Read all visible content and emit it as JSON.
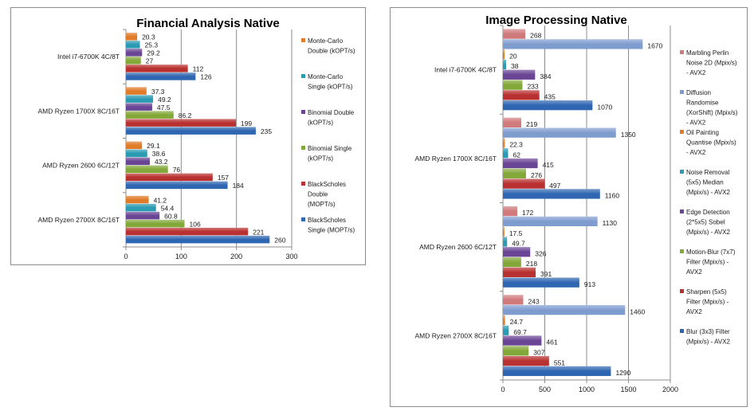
{
  "chart_data": [
    {
      "type": "bar",
      "orientation": "horizontal",
      "title": "Financial Analysis Native",
      "xlabel": "",
      "ylabel": "",
      "xlim": [
        0,
        300
      ],
      "xticks": [
        "0",
        "100",
        "200",
        "300"
      ],
      "grid": true,
      "legend_position": "right",
      "categories": [
        "Intel i7-6700K 4C/8T",
        "AMD Ryzen 1700X 8C/16T",
        "AMD Ryzen 2600 6C/12T",
        "AMD Ryzen 2700X 8C/16T"
      ],
      "series": [
        {
          "name": "Monte-Carlo Double (kOPT/s)",
          "legend_lines": [
            "Monte-Carlo",
            "Double (kOPT/s)"
          ],
          "color": "#e07b29",
          "values": [
            20.3,
            37.3,
            29.1,
            41.2
          ],
          "labels": [
            "20.3",
            "37.3",
            "29.1",
            "41.2"
          ]
        },
        {
          "name": "Monte-Carlo Single (kOPT/s)",
          "legend_lines": [
            "Monte-Carlo",
            "Single (kOPT/s)"
          ],
          "color": "#2b9bb3",
          "values": [
            25.3,
            49.2,
            38.6,
            54.4
          ],
          "labels": [
            "25.3",
            "49.2",
            "38.6",
            "54.4"
          ]
        },
        {
          "name": "Binomial Double (kOPT/s)",
          "legend_lines": [
            "Binomial Double",
            "(kOPT/s)"
          ],
          "color": "#6a4595",
          "values": [
            29.2,
            47.5,
            43.2,
            60.8
          ],
          "labels": [
            "29.2",
            "47.5",
            "43.2",
            "60.8"
          ]
        },
        {
          "name": "Binomial Single (kOPT/s)",
          "legend_lines": [
            "Binomial Single",
            "(kOPT/s)"
          ],
          "color": "#83a83a",
          "values": [
            27,
            86.2,
            76,
            106
          ],
          "labels": [
            "27",
            "86.2",
            "76",
            "106"
          ]
        },
        {
          "name": "BlackScholes Double (MOPT/s)",
          "legend_lines": [
            "BlackScholes",
            "Double",
            "(MOPT/s)"
          ],
          "color": "#b8302f",
          "values": [
            112,
            199,
            157,
            221
          ],
          "labels": [
            "112",
            "199",
            "157",
            "221"
          ]
        },
        {
          "name": "BlackScholes Single (MOPT/s)",
          "legend_lines": [
            "BlackScholes",
            "Single (MOPT/s)"
          ],
          "color": "#2f66b1",
          "values": [
            126,
            235,
            184,
            260
          ],
          "labels": [
            "126",
            "235",
            "184",
            "260"
          ]
        }
      ]
    },
    {
      "type": "bar",
      "orientation": "horizontal",
      "title": "Image Processing Native",
      "xlabel": "",
      "ylabel": "",
      "xlim": [
        0,
        2000
      ],
      "xticks": [
        "0",
        "500",
        "1000",
        "1500",
        "2000"
      ],
      "grid": true,
      "legend_position": "right",
      "categories": [
        "Intel i7-6700K 4C/8T",
        "AMD Ryzen 1700X 8C/16T",
        "AMD Ryzen 2600 6C/12T",
        "AMD Ryzen 2700X 8C/16T"
      ],
      "series": [
        {
          "name": "Marbling Perlin Noise 2D (Mpix/s) - AVX2",
          "legend_lines": [
            "Marbling Perlin",
            "Noise 2D (Mpix/s)",
            "- AVX2"
          ],
          "color": "#d17a7c",
          "values": [
            268,
            219,
            172,
            243
          ],
          "labels": [
            "268",
            "219",
            "172",
            "243"
          ]
        },
        {
          "name": "Diffusion Randomise (XorShift) (Mpix/s) - AVX2",
          "legend_lines": [
            "Diffusion",
            "Randomise",
            "(XorShift) (Mpix/s)",
            "- AVX2"
          ],
          "color": "#7f9ccf",
          "values": [
            1670,
            1350,
            1130,
            1460
          ],
          "labels": [
            "1670",
            "1350",
            "1130",
            "1460"
          ]
        },
        {
          "name": "Oil Painting Quantise (Mpix/s) - AVX2",
          "legend_lines": [
            "Oil Painting",
            "Quantise (Mpix/s)",
            "- AVX2"
          ],
          "color": "#e07b29",
          "values": [
            20,
            22.3,
            17.5,
            24.7
          ],
          "labels": [
            "20",
            "22.3",
            "17.5",
            "24.7"
          ]
        },
        {
          "name": "Noise Removal (5x5) Median (Mpix/s) - AVX2",
          "legend_lines": [
            "Noise Removal",
            "(5x5) Median",
            "(Mpix/s) - AVX2"
          ],
          "color": "#2b9bb3",
          "values": [
            38,
            62,
            49.7,
            69.7
          ],
          "labels": [
            "38",
            "62",
            "49.7",
            "69.7"
          ]
        },
        {
          "name": "Edge Detection (2*5x5) Sobel (Mpix/s) - AVX2",
          "legend_lines": [
            "Edge Detection",
            "(2*5x5) Sobel",
            "(Mpix/s) - AVX2"
          ],
          "color": "#6a4595",
          "values": [
            384,
            415,
            326,
            461
          ],
          "labels": [
            "384",
            "415",
            "326",
            "461"
          ]
        },
        {
          "name": "Motion-Blur (7x7) Filter (Mpix/s) - AVX2",
          "legend_lines": [
            "Motion-Blur (7x7)",
            "Filter (Mpix/s) -",
            "AVX2"
          ],
          "color": "#83a83a",
          "values": [
            233,
            276,
            218,
            307
          ],
          "labels": [
            "233",
            "276",
            "218",
            "307"
          ]
        },
        {
          "name": "Sharpen (5x5) Filter (Mpix/s) - AVX2",
          "legend_lines": [
            "Sharpen (5x5)",
            "Filter (Mpix/s) -",
            "AVX2"
          ],
          "color": "#b8302f",
          "values": [
            435,
            497,
            391,
            551
          ],
          "labels": [
            "435",
            "497",
            "391",
            "551"
          ]
        },
        {
          "name": "Blur (3x3) Filter (Mpix/s) - AVX2",
          "legend_lines": [
            "Blur (3x3) Filter",
            "(Mpix/s) - AVX2"
          ],
          "color": "#2f66b1",
          "values": [
            1070,
            1160,
            913,
            1290
          ],
          "labels": [
            "1070",
            "1160",
            "913",
            "1290"
          ]
        }
      ]
    }
  ]
}
